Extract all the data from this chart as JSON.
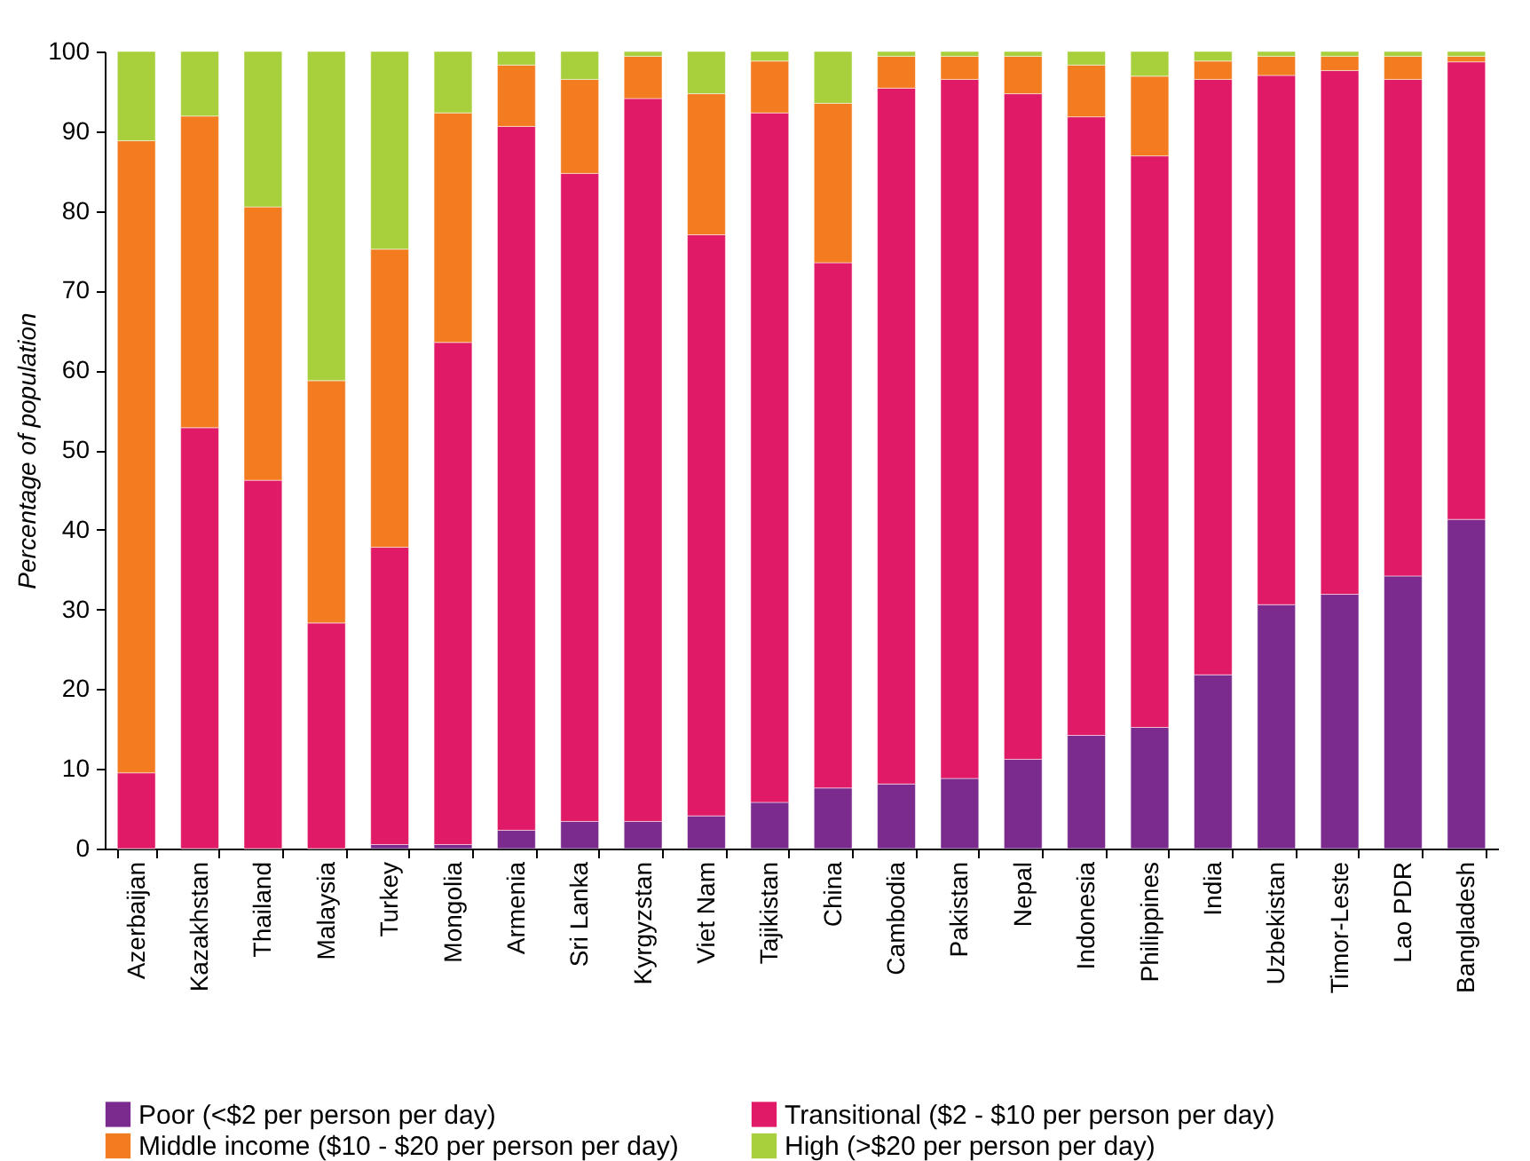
{
  "chart_data": {
    "type": "bar",
    "stacked": true,
    "ylabel": "Percentage of population",
    "categories": [
      "Azerbaijan",
      "Kazakhstan",
      "Thailand",
      "Malaysia",
      "Turkey",
      "Mongolia",
      "Armenia",
      "Sri Lanka",
      "Kyrgyzstan",
      "Viet Nam",
      "Tajikistan",
      "China",
      "Cambodia",
      "Pakistan",
      "Nepal",
      "Indonesia",
      "Philippines",
      "India",
      "Uzbekistan",
      "Timor-Leste",
      "Lao PDR",
      "Bangladesh"
    ],
    "series": [
      {
        "name": "Poor  (<$2 per person per day)",
        "color": "#7b2a8e",
        "values": [
          0,
          0,
          0,
          0,
          0.5,
          0.5,
          2.3,
          3.4,
          3.4,
          4.1,
          5.8,
          7.6,
          8.1,
          8.8,
          11.2,
          14.2,
          15.2,
          21.8,
          30.6,
          31.9,
          34.2,
          41.3
        ]
      },
      {
        "name": "Transitional ($2 - $10 per person per day)",
        "color": "#e01a66",
        "values": [
          9.5,
          52.8,
          46.2,
          28.3,
          37.3,
          63,
          88.3,
          81.3,
          90.7,
          72.9,
          86.5,
          65.9,
          87.3,
          87.7,
          83.5,
          77.6,
          71.7,
          74.7,
          66.4,
          65.7,
          62.3,
          57.4
        ]
      },
      {
        "name": "Middle income ($10 - $20 per person per day)",
        "color": "#f47c20",
        "values": [
          79.3,
          39.1,
          34.3,
          30.4,
          37.4,
          28.8,
          7.7,
          11.8,
          5.3,
          17.7,
          6.5,
          20,
          4,
          2.9,
          4.7,
          6.5,
          10,
          2.3,
          2.4,
          1.8,
          2.9,
          0.7
        ]
      },
      {
        "name": "High  (>$20 per person per day)",
        "color": "#a8cf3c",
        "values": [
          11.2,
          8.1,
          19.5,
          41.3,
          24.8,
          7.7,
          1.7,
          3.5,
          0.6,
          5.3,
          1.2,
          6.5,
          0.6,
          0.6,
          0.6,
          1.7,
          3.1,
          1.2,
          0.6,
          0.6,
          0.6,
          0.6
        ]
      }
    ],
    "ylim": [
      0,
      100
    ],
    "yticks": [
      0,
      10,
      20,
      30,
      40,
      50,
      60,
      70,
      80,
      90,
      100
    ],
    "grid": false,
    "legend": "bottom"
  }
}
